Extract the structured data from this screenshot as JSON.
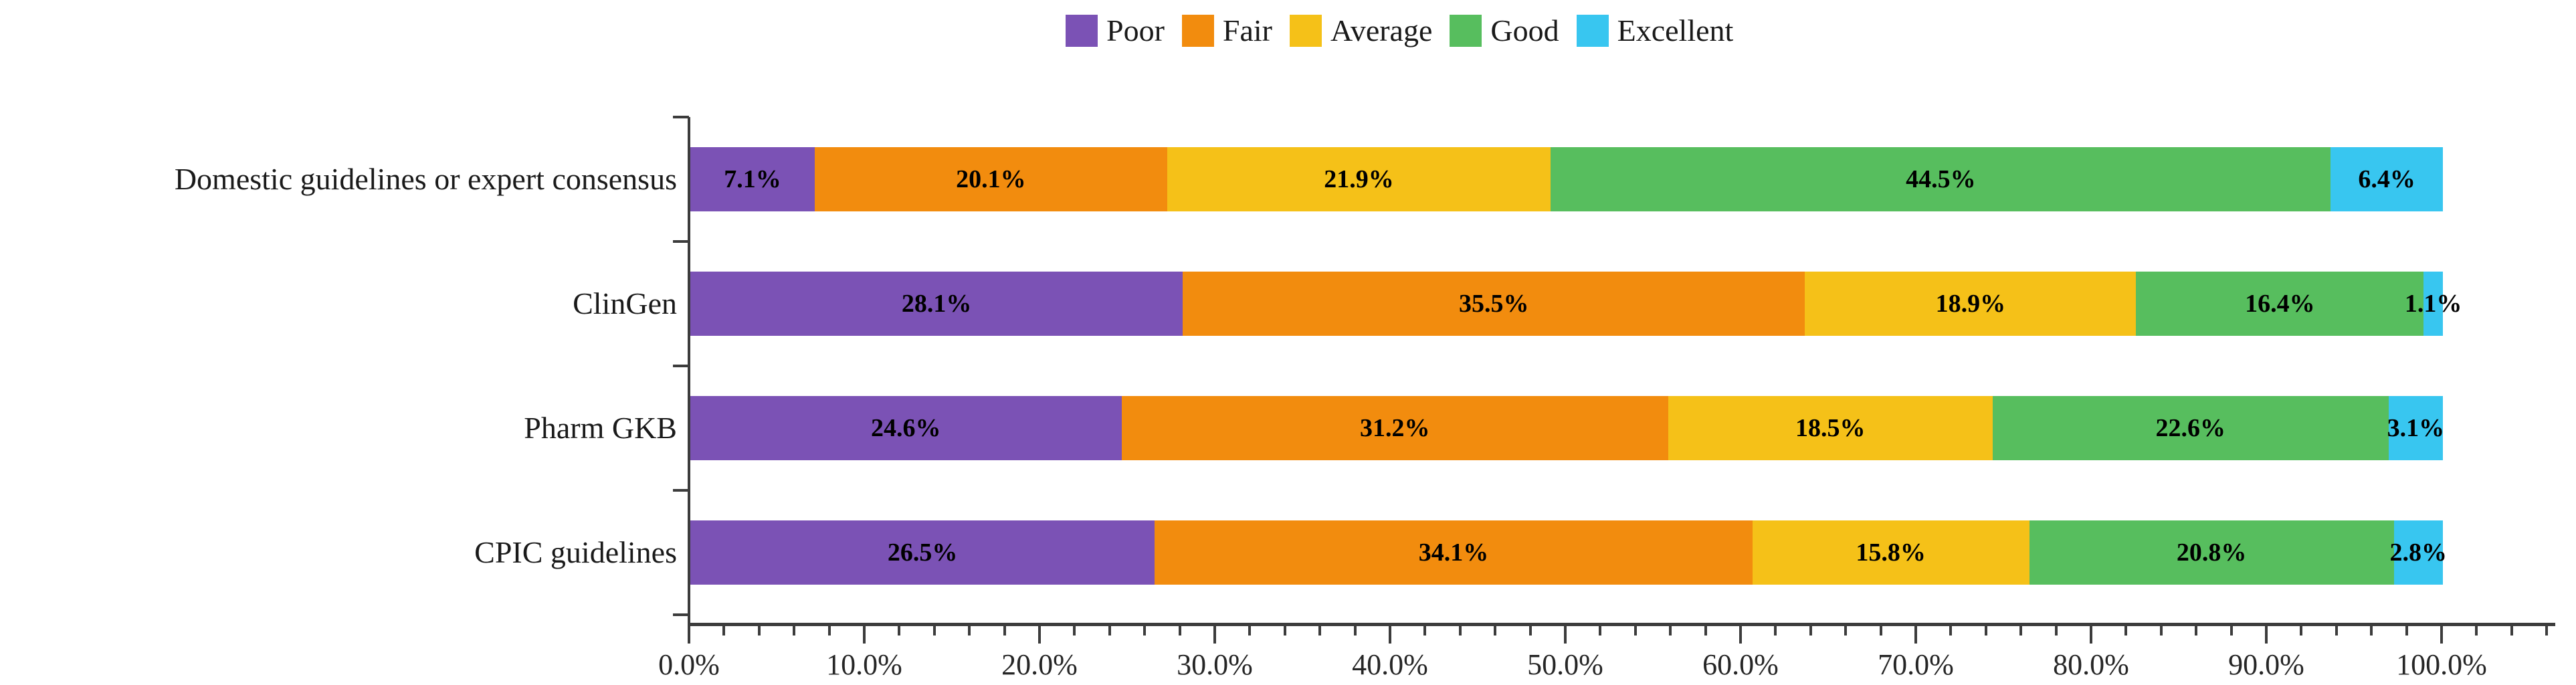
{
  "chart_data": {
    "type": "bar",
    "orientation": "horizontal",
    "stacked": true,
    "categories": [
      "Domestic guidelines or expert consensus",
      "ClinGen",
      "Pharm GKB",
      "CPIC guidelines"
    ],
    "series": [
      {
        "name": "Poor",
        "color": "#7b52b5",
        "values": [
          7.1,
          28.1,
          24.6,
          26.5
        ]
      },
      {
        "name": "Fair",
        "color": "#f28c0e",
        "values": [
          20.1,
          35.5,
          31.2,
          34.1
        ]
      },
      {
        "name": "Average",
        "color": "#f5c118",
        "values": [
          21.9,
          18.9,
          18.5,
          15.8
        ]
      },
      {
        "name": "Good",
        "color": "#57be5e",
        "values": [
          44.5,
          16.4,
          22.6,
          20.8
        ]
      },
      {
        "name": "Excellent",
        "color": "#38c6f0",
        "values": [
          6.4,
          1.1,
          3.1,
          2.8
        ]
      }
    ],
    "value_label_suffix": "%",
    "x_axis": {
      "tick_labels": [
        "0.0%",
        "10.0%",
        "20.0%",
        "30.0%",
        "40.0%",
        "50.0%",
        "60.0%",
        "70.0%",
        "80.0%",
        "90.0%",
        "100.0%"
      ],
      "min": 0,
      "max": 100,
      "major_step": 10,
      "minor_step": 2,
      "overhang_max": 106
    },
    "legend": {
      "position": "top",
      "entries": [
        "Poor",
        "Fair",
        "Average",
        "Good",
        "Excellent"
      ]
    },
    "grid": false,
    "axis_color": "#3c3c3c"
  }
}
